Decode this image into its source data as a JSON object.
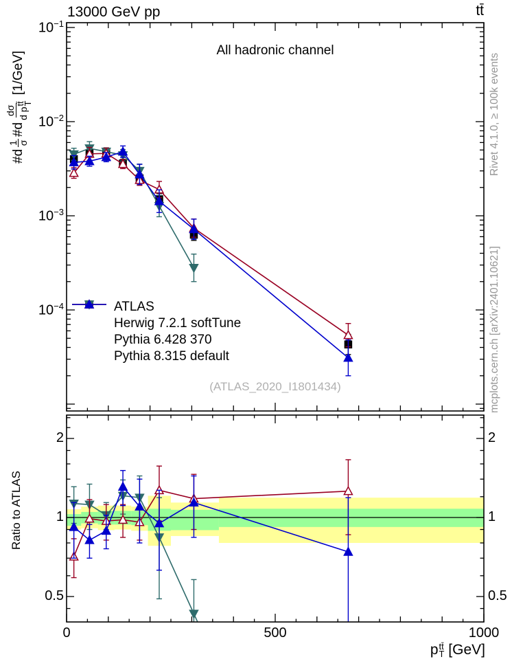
{
  "header": {
    "collision": "13000 GeV pp",
    "process": "tt̄"
  },
  "panel": {
    "channel": "All hadronic channel",
    "watermark": "(ATLAS_2020_I1801434)"
  },
  "side_notes": {
    "top": "Rivet 4.1.0, ≥ 100k events",
    "bottom": "mcplots.cern.ch [arXiv:2401.10621]"
  },
  "axes": {
    "x_title": {
      "base": "p",
      "sub": "T",
      "sup": "tt̄",
      "unit": " [GeV]"
    },
    "x_ticks": [
      {
        "v": 0,
        "label": "0"
      },
      {
        "v": 500,
        "label": "500"
      },
      {
        "v": 1000,
        "label": "1000"
      }
    ],
    "y_title": {
      "prefix1": "#d",
      "frac1_num": "1",
      "frac1_den": "σ",
      "prefix2": "#d",
      "frac2_num": "dσ",
      "frac2_den_base": "d p",
      "frac2_den_sub": "T",
      "frac2_den_sup": "tt̄",
      "unit": " [1/GeV]"
    },
    "y_tick_exponents": [
      -1,
      -2,
      -3,
      -4
    ],
    "ratio_title": "Ratio to ATLAS",
    "ratio_ticks": [
      {
        "v": 2,
        "label": "2"
      },
      {
        "v": 1,
        "label": "1"
      },
      {
        "v": 0.5,
        "label": "0.5"
      }
    ]
  },
  "colors": {
    "yellow_band": "#ffff99",
    "green_band": "#99ff99",
    "gray_text": "#969696",
    "watermark": "#b0b0b0",
    "frame": "#000000"
  },
  "chart_data": {
    "type": "line",
    "title": "All hadronic channel",
    "xlabel": "p_T^{ttbar} [GeV]",
    "ylabel": "1/sigma dsigma/dp_T^{ttbar} [1/GeV]",
    "ylabel_ratio": "Ratio to ATLAS",
    "xlim": [
      0,
      1000
    ],
    "ylim_main": [
      8.6e-06,
      0.112
    ],
    "ylim_ratio": [
      0.4,
      2.45
    ],
    "x_scale": "linear",
    "y_scale_main": "log",
    "y_scale_ratio": "log",
    "grid": false,
    "legend_position": "middle-left",
    "x": [
      17.5,
      55,
      95,
      135,
      175,
      222,
      305,
      675
    ],
    "series": [
      {
        "name": "ATLAS",
        "color": "#000000",
        "marker": "square",
        "fill": "filled",
        "line": false,
        "show_in_ratio": false,
        "y": [
          0.004,
          0.0046,
          0.0047,
          0.0036,
          0.0025,
          0.0015,
          0.00063,
          4.3e-05
        ],
        "yerr_rel": [
          0.13,
          0.1,
          0.1,
          0.1,
          0.12,
          0.15,
          0.15,
          0.28
        ],
        "ratio": [
          1,
          1,
          1,
          1,
          1,
          1,
          1,
          1
        ]
      },
      {
        "name": "Herwig 7.2.1 softTune",
        "color": "#2e6b6b",
        "marker": "triangle-down",
        "fill": "filled",
        "line": true,
        "show_in_ratio": true,
        "ratio_arrow_down": true,
        "y": [
          0.0045,
          0.0052,
          0.0048,
          0.0044,
          0.003,
          0.00127,
          0.00028
        ],
        "yerr_rel": [
          0.16,
          0.18,
          0.1,
          0.15,
          0.18,
          0.3,
          0.4
        ],
        "ratio": [
          1.13,
          1.12,
          1.02,
          1.21,
          1.19,
          0.84,
          0.43
        ],
        "ratio_err": [
          0.18,
          0.22,
          0.12,
          0.18,
          0.25,
          0.35,
          0.15
        ]
      },
      {
        "name": "Pythia 6.428 370",
        "color": "#990022",
        "marker": "triangle-up",
        "fill": "open",
        "line": true,
        "show_in_ratio": true,
        "y": [
          0.00285,
          0.00455,
          0.0046,
          0.00355,
          0.0024,
          0.0019,
          0.00074,
          5.4e-05
        ],
        "yerr_rel": [
          0.14,
          0.17,
          0.14,
          0.12,
          0.14,
          0.22,
          0.25,
          0.33
        ],
        "ratio": [
          0.71,
          0.99,
          0.97,
          0.98,
          0.96,
          1.27,
          1.18,
          1.26
        ],
        "ratio_err": [
          0.12,
          0.18,
          0.15,
          0.14,
          0.14,
          0.3,
          0.28,
          0.4
        ]
      },
      {
        "name": "Pythia 8.315 default",
        "color": "#0000cc",
        "marker": "triangle-up",
        "fill": "filled",
        "line": true,
        "show_in_ratio": true,
        "y": [
          0.0037,
          0.0038,
          0.0042,
          0.0048,
          0.00275,
          0.00143,
          0.00072,
          3.1e-05
        ],
        "yerr_rel": [
          0.18,
          0.13,
          0.12,
          0.15,
          0.28,
          0.32,
          0.28,
          0.55
        ],
        "ratio": [
          0.92,
          0.82,
          0.89,
          1.31,
          1.1,
          0.95,
          1.14,
          0.74
        ],
        "ratio_err": [
          0.22,
          0.12,
          0.13,
          0.2,
          0.3,
          0.32,
          0.3,
          0.45
        ]
      }
    ],
    "bands": {
      "bin_edges": [
        0,
        35,
        75,
        115,
        155,
        195,
        250,
        365,
        1000
      ],
      "yellow": [
        [
          0.9,
          1.075
        ],
        [
          0.91,
          1.1
        ],
        [
          0.895,
          1.11
        ],
        [
          0.9,
          1.11
        ],
        [
          0.89,
          1.1
        ],
        [
          0.78,
          1.21
        ],
        [
          0.85,
          1.14
        ],
        [
          0.8,
          1.19
        ]
      ],
      "green": [
        [
          0.93,
          1.03
        ],
        [
          0.95,
          1.05
        ],
        [
          0.94,
          1.06
        ],
        [
          0.94,
          1.06
        ],
        [
          0.935,
          1.06
        ],
        [
          0.89,
          1.08
        ],
        [
          0.895,
          1.07
        ],
        [
          0.92,
          1.08
        ]
      ]
    }
  }
}
